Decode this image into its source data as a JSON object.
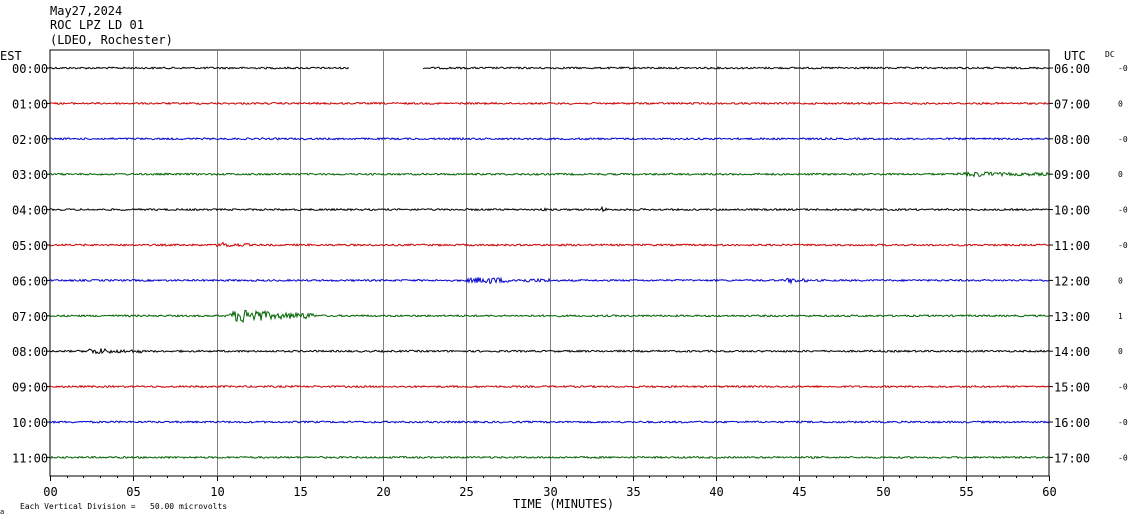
{
  "header": {
    "date": "May27,2024",
    "station": "ROC LPZ LD 01",
    "network": "(LDEO, Rochester)"
  },
  "left_zone_label": "EST",
  "right_zone_label": "UTC",
  "dc_label": "DC",
  "footer": {
    "scale_text": "Each Vertical Division =   50.00 microvolts",
    "corner_mark": "a"
  },
  "chart_data": {
    "type": "line",
    "title": "",
    "xlabel": "TIME (MINUTES)",
    "ylabel": "",
    "xlim": [
      0,
      60
    ],
    "x_ticks": [
      "00",
      "05",
      "10",
      "15",
      "20",
      "25",
      "30",
      "35",
      "40",
      "45",
      "50",
      "55",
      "60"
    ],
    "grid_x": true,
    "trace_colors": [
      "#000000",
      "#cc0000",
      "#0000cc",
      "#006400"
    ],
    "rows": [
      {
        "est": "00:00",
        "utc": "06:00",
        "dc": "-0",
        "gaps": [
          [
            18.0,
            22.4
          ]
        ],
        "events": []
      },
      {
        "est": "01:00",
        "utc": "07:00",
        "dc": "0",
        "gaps": [],
        "events": []
      },
      {
        "est": "02:00",
        "utc": "08:00",
        "dc": "-0",
        "gaps": [],
        "events": []
      },
      {
        "est": "03:00",
        "utc": "09:00",
        "dc": "0",
        "gaps": [],
        "events": [
          {
            "start": 54.5,
            "end": 60.0,
            "amp": 2.5
          }
        ]
      },
      {
        "est": "04:00",
        "utc": "10:00",
        "dc": "-0",
        "gaps": [],
        "events": [
          {
            "start": 29.6,
            "end": 29.8,
            "amp": 3
          },
          {
            "start": 33.1,
            "end": 33.4,
            "amp": 2.5
          }
        ]
      },
      {
        "est": "05:00",
        "utc": "11:00",
        "dc": "-0",
        "gaps": [],
        "events": [
          {
            "start": 10.0,
            "end": 12.0,
            "amp": 2.5
          }
        ]
      },
      {
        "est": "06:00",
        "utc": "12:00",
        "dc": "0",
        "gaps": [],
        "events": [
          {
            "start": 25.0,
            "end": 30.0,
            "amp": 3.5
          },
          {
            "start": 44.2,
            "end": 45.5,
            "amp": 3
          }
        ]
      },
      {
        "est": "07:00",
        "utc": "13:00",
        "dc": "1",
        "gaps": [],
        "events": [
          {
            "start": 10.7,
            "end": 15.8,
            "amp": 9
          }
        ]
      },
      {
        "est": "08:00",
        "utc": "14:00",
        "dc": "0",
        "gaps": [],
        "events": [
          {
            "start": 2.0,
            "end": 5.5,
            "amp": 3
          }
        ]
      },
      {
        "est": "09:00",
        "utc": "15:00",
        "dc": "-0",
        "gaps": [],
        "events": []
      },
      {
        "est": "10:00",
        "utc": "16:00",
        "dc": "-0",
        "gaps": [],
        "events": []
      },
      {
        "est": "11:00",
        "utc": "17:00",
        "dc": "-0",
        "gaps": [],
        "events": []
      }
    ]
  }
}
